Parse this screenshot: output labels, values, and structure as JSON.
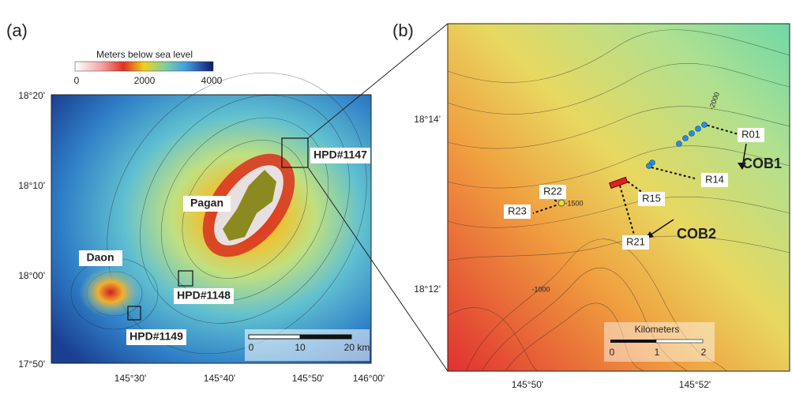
{
  "panel_a": {
    "label": "(a)",
    "colorbar": {
      "title": "Meters below sea level",
      "ticks": [
        "0",
        "2000",
        "4000"
      ]
    },
    "lat_labels": [
      "18°20'",
      "18°10'",
      "18°00'",
      "17°50'"
    ],
    "lon_labels": [
      "145°30'",
      "145°40'",
      "145°50'",
      "146°00'"
    ],
    "places": [
      "Pagan",
      "Daon"
    ],
    "sites": [
      "HPD#1147",
      "HPD#1148",
      "HPD#1149"
    ],
    "scale_bar": [
      "0",
      "10",
      "20 km"
    ]
  },
  "panel_b": {
    "label": "(b)",
    "lat_labels": [
      "18°14'",
      "18°12'"
    ],
    "lon_labels": [
      "145°50'",
      "145°52'"
    ],
    "samples": [
      "R01",
      "R14",
      "R15",
      "R21",
      "R22",
      "R23"
    ],
    "units": [
      "COB1",
      "COB2"
    ],
    "contours": [
      "-1500",
      "-1000",
      "-2000"
    ],
    "scale_bar": {
      "title": "Kilometers",
      "ticks": [
        "0",
        "1",
        "2"
      ]
    }
  }
}
